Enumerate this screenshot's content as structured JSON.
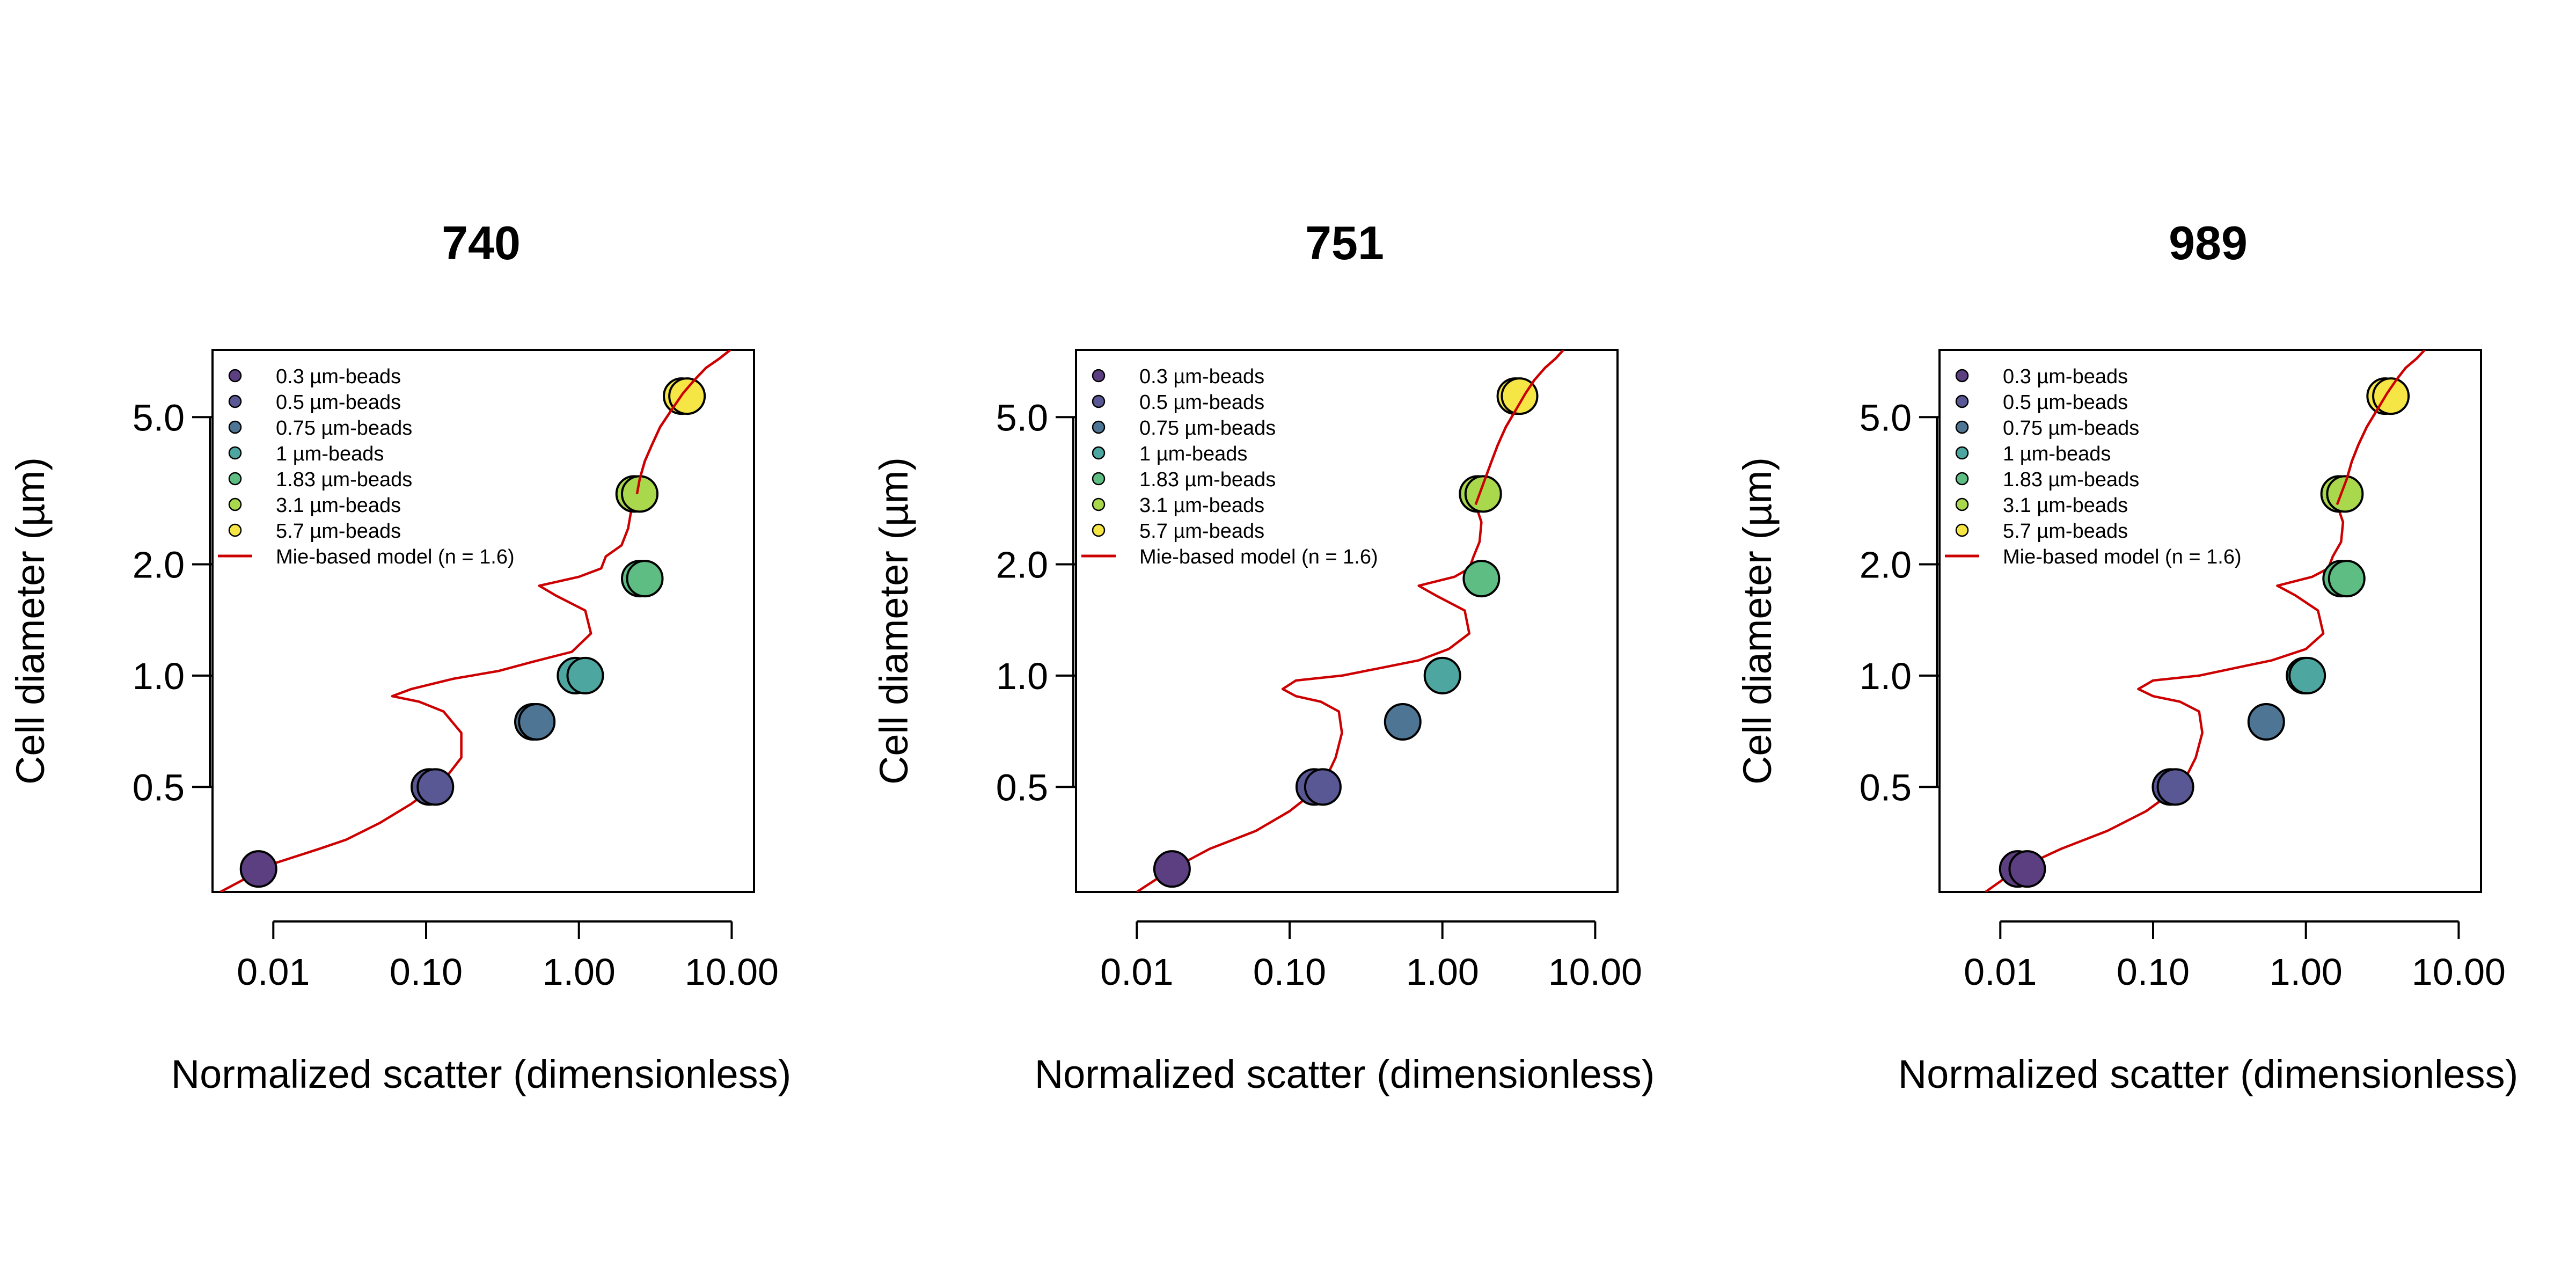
{
  "legend": {
    "entries": [
      {
        "label": "0.3 µm-beads",
        "color": "#5c3f80"
      },
      {
        "label": "0.5 µm-beads",
        "color": "#5a5894"
      },
      {
        "label": "0.75 µm-beads",
        "color": "#4f7595"
      },
      {
        "label": "1 µm-beads",
        "color": "#4ea6a0"
      },
      {
        "label": "1.83 µm-beads",
        "color": "#5dbd82"
      },
      {
        "label": "3.1 µm-beads",
        "color": "#a9d84c"
      },
      {
        "label": "5.7 µm-beads",
        "color": "#f6e645"
      }
    ],
    "model_label": "Mie-based model (n = 1.6)",
    "model_color": "#cc0000",
    "placement": "top-left"
  },
  "chart_data": [
    {
      "type": "scatter",
      "title": "740",
      "xlabel": "Normalized scatter (dimensionless)",
      "ylabel": "Cell diameter (µm)",
      "x_scale": "log",
      "y_scale": "log",
      "xlim": [
        0.004,
        14
      ],
      "ylim": [
        0.26,
        7.6
      ],
      "x_ticks": [
        "0.01",
        "0.10",
        "1.00",
        "10.00"
      ],
      "y_ticks": [
        "0.5",
        "1.0",
        "2.0",
        "5.0"
      ],
      "grid": false,
      "series": [
        {
          "name": "0.3 µm-beads",
          "color": "#5c3f80",
          "points": [
            [
              0.008,
              0.3
            ]
          ]
        },
        {
          "name": "0.5 µm-beads",
          "color": "#5a5894",
          "points": [
            [
              0.105,
              0.5
            ],
            [
              0.115,
              0.5
            ]
          ]
        },
        {
          "name": "0.75 µm-beads",
          "color": "#4f7595",
          "points": [
            [
              0.5,
              0.75
            ],
            [
              0.53,
              0.75
            ]
          ]
        },
        {
          "name": "1 µm-beads",
          "color": "#4ea6a0",
          "points": [
            [
              0.95,
              1.0
            ],
            [
              1.1,
              1.0
            ]
          ]
        },
        {
          "name": "1.83 µm-beads",
          "color": "#5dbd82",
          "points": [
            [
              2.5,
              1.83
            ],
            [
              2.7,
              1.83
            ]
          ]
        },
        {
          "name": "3.1 µm-beads",
          "color": "#a9d84c",
          "points": [
            [
              2.3,
              3.1
            ],
            [
              2.5,
              3.1
            ]
          ]
        },
        {
          "name": "5.7 µm-beads",
          "color": "#f6e645",
          "points": [
            [
              4.7,
              5.7
            ],
            [
              5.1,
              5.7
            ]
          ]
        }
      ],
      "model_curve": {
        "name": "Mie-based model (n = 1.6)",
        "x": [
          0.0045,
          0.01,
          0.02,
          0.03,
          0.05,
          0.08,
          0.105,
          0.13,
          0.17,
          0.17,
          0.13,
          0.09,
          0.06,
          0.08,
          0.15,
          0.3,
          0.5,
          0.9,
          1.2,
          1.1,
          0.7,
          0.55,
          1.0,
          1.4,
          1.5,
          1.9,
          2.1,
          2.2,
          2.4,
          2.5,
          2.7,
          3.0,
          3.4,
          4.0,
          4.8,
          5.7,
          6.8,
          8.3,
          9.8
        ],
        "y": [
          0.26,
          0.31,
          0.34,
          0.36,
          0.4,
          0.45,
          0.49,
          0.52,
          0.6,
          0.7,
          0.8,
          0.85,
          0.88,
          0.92,
          0.98,
          1.03,
          1.09,
          1.16,
          1.3,
          1.5,
          1.65,
          1.75,
          1.85,
          1.95,
          2.1,
          2.25,
          2.5,
          2.8,
          3.1,
          3.4,
          3.8,
          4.2,
          4.7,
          5.2,
          5.8,
          6.3,
          6.8,
          7.2,
          7.6
        ]
      }
    },
    {
      "type": "scatter",
      "title": "751",
      "xlabel": "Normalized scatter (dimensionless)",
      "ylabel": "Cell diameter (µm)",
      "x_scale": "log",
      "y_scale": "log",
      "xlim": [
        0.004,
        14
      ],
      "ylim": [
        0.26,
        7.6
      ],
      "x_ticks": [
        "0.01",
        "0.10",
        "1.00",
        "10.00"
      ],
      "y_ticks": [
        "0.5",
        "1.0",
        "2.0",
        "5.0"
      ],
      "grid": false,
      "series": [
        {
          "name": "0.3 µm-beads",
          "color": "#5c3f80",
          "points": [
            [
              0.017,
              0.3
            ]
          ]
        },
        {
          "name": "0.5 µm-beads",
          "color": "#5a5894",
          "points": [
            [
              0.145,
              0.5
            ],
            [
              0.165,
              0.5
            ]
          ]
        },
        {
          "name": "0.75 µm-beads",
          "color": "#4f7595",
          "points": [
            [
              0.55,
              0.75
            ]
          ]
        },
        {
          "name": "1 µm-beads",
          "color": "#4ea6a0",
          "points": [
            [
              1.0,
              1.0
            ]
          ]
        },
        {
          "name": "1.83 µm-beads",
          "color": "#5dbd82",
          "points": [
            [
              1.8,
              1.83
            ]
          ]
        },
        {
          "name": "3.1 µm-beads",
          "color": "#a9d84c",
          "points": [
            [
              1.7,
              3.1
            ],
            [
              1.85,
              3.1
            ]
          ]
        },
        {
          "name": "5.7 µm-beads",
          "color": "#f6e645",
          "points": [
            [
              3.0,
              5.7
            ],
            [
              3.2,
              5.7
            ]
          ]
        }
      ],
      "model_curve": {
        "name": "Mie-based model (n = 1.6)",
        "x": [
          0.01,
          0.017,
          0.03,
          0.06,
          0.1,
          0.14,
          0.17,
          0.2,
          0.22,
          0.21,
          0.16,
          0.11,
          0.09,
          0.11,
          0.22,
          0.4,
          0.7,
          1.1,
          1.5,
          1.4,
          0.9,
          0.7,
          1.2,
          1.5,
          1.6,
          1.75,
          1.8,
          1.65,
          1.75,
          1.9,
          2.1,
          2.3,
          2.6,
          3.0,
          3.5,
          4.0,
          4.7,
          5.5,
          6.2
        ],
        "y": [
          0.26,
          0.3,
          0.34,
          0.38,
          0.43,
          0.48,
          0.52,
          0.6,
          0.7,
          0.8,
          0.85,
          0.88,
          0.92,
          0.97,
          1.0,
          1.05,
          1.1,
          1.18,
          1.3,
          1.5,
          1.65,
          1.75,
          1.85,
          1.95,
          2.1,
          2.3,
          2.6,
          2.9,
          3.1,
          3.4,
          3.8,
          4.2,
          4.7,
          5.2,
          5.8,
          6.3,
          6.8,
          7.2,
          7.6
        ]
      }
    },
    {
      "type": "scatter",
      "title": "989",
      "xlabel": "Normalized scatter (dimensionless)",
      "ylabel": "Cell diameter (µm)",
      "x_scale": "log",
      "y_scale": "log",
      "xlim": [
        0.004,
        14
      ],
      "ylim": [
        0.26,
        7.6
      ],
      "x_ticks": [
        "0.01",
        "0.10",
        "1.00",
        "10.00"
      ],
      "y_ticks": [
        "0.5",
        "1.0",
        "2.0",
        "5.0"
      ],
      "grid": false,
      "series": [
        {
          "name": "0.3 µm-beads",
          "color": "#5c3f80",
          "points": [
            [
              0.013,
              0.3
            ],
            [
              0.015,
              0.3
            ]
          ]
        },
        {
          "name": "0.5 µm-beads",
          "color": "#5a5894",
          "points": [
            [
              0.13,
              0.5
            ],
            [
              0.14,
              0.5
            ]
          ]
        },
        {
          "name": "0.75 µm-beads",
          "color": "#4f7595",
          "points": [
            [
              0.55,
              0.75
            ]
          ]
        },
        {
          "name": "1 µm-beads",
          "color": "#4ea6a0",
          "points": [
            [
              0.98,
              1.0
            ],
            [
              1.02,
              1.0
            ]
          ]
        },
        {
          "name": "1.83 µm-beads",
          "color": "#5dbd82",
          "points": [
            [
              1.7,
              1.83
            ],
            [
              1.85,
              1.83
            ]
          ]
        },
        {
          "name": "3.1 µm-beads",
          "color": "#a9d84c",
          "points": [
            [
              1.65,
              3.1
            ],
            [
              1.8,
              3.1
            ]
          ]
        },
        {
          "name": "5.7 µm-beads",
          "color": "#f6e645",
          "points": [
            [
              3.3,
              5.7
            ],
            [
              3.6,
              5.7
            ]
          ]
        }
      ],
      "model_curve": {
        "name": "Mie-based model (n = 1.6)",
        "x": [
          0.008,
          0.013,
          0.025,
          0.05,
          0.09,
          0.13,
          0.16,
          0.19,
          0.21,
          0.2,
          0.15,
          0.1,
          0.08,
          0.1,
          0.2,
          0.35,
          0.6,
          1.0,
          1.3,
          1.2,
          0.85,
          0.65,
          1.1,
          1.4,
          1.5,
          1.7,
          1.75,
          1.6,
          1.7,
          1.85,
          2.0,
          2.2,
          2.5,
          2.9,
          3.4,
          3.9,
          4.5,
          5.3,
          6.0
        ],
        "y": [
          0.26,
          0.3,
          0.34,
          0.38,
          0.43,
          0.48,
          0.52,
          0.6,
          0.7,
          0.8,
          0.85,
          0.88,
          0.92,
          0.97,
          1.0,
          1.05,
          1.1,
          1.18,
          1.3,
          1.5,
          1.65,
          1.75,
          1.85,
          1.95,
          2.1,
          2.3,
          2.6,
          2.9,
          3.1,
          3.4,
          3.8,
          4.2,
          4.7,
          5.2,
          5.8,
          6.3,
          6.8,
          7.2,
          7.6
        ]
      }
    }
  ]
}
